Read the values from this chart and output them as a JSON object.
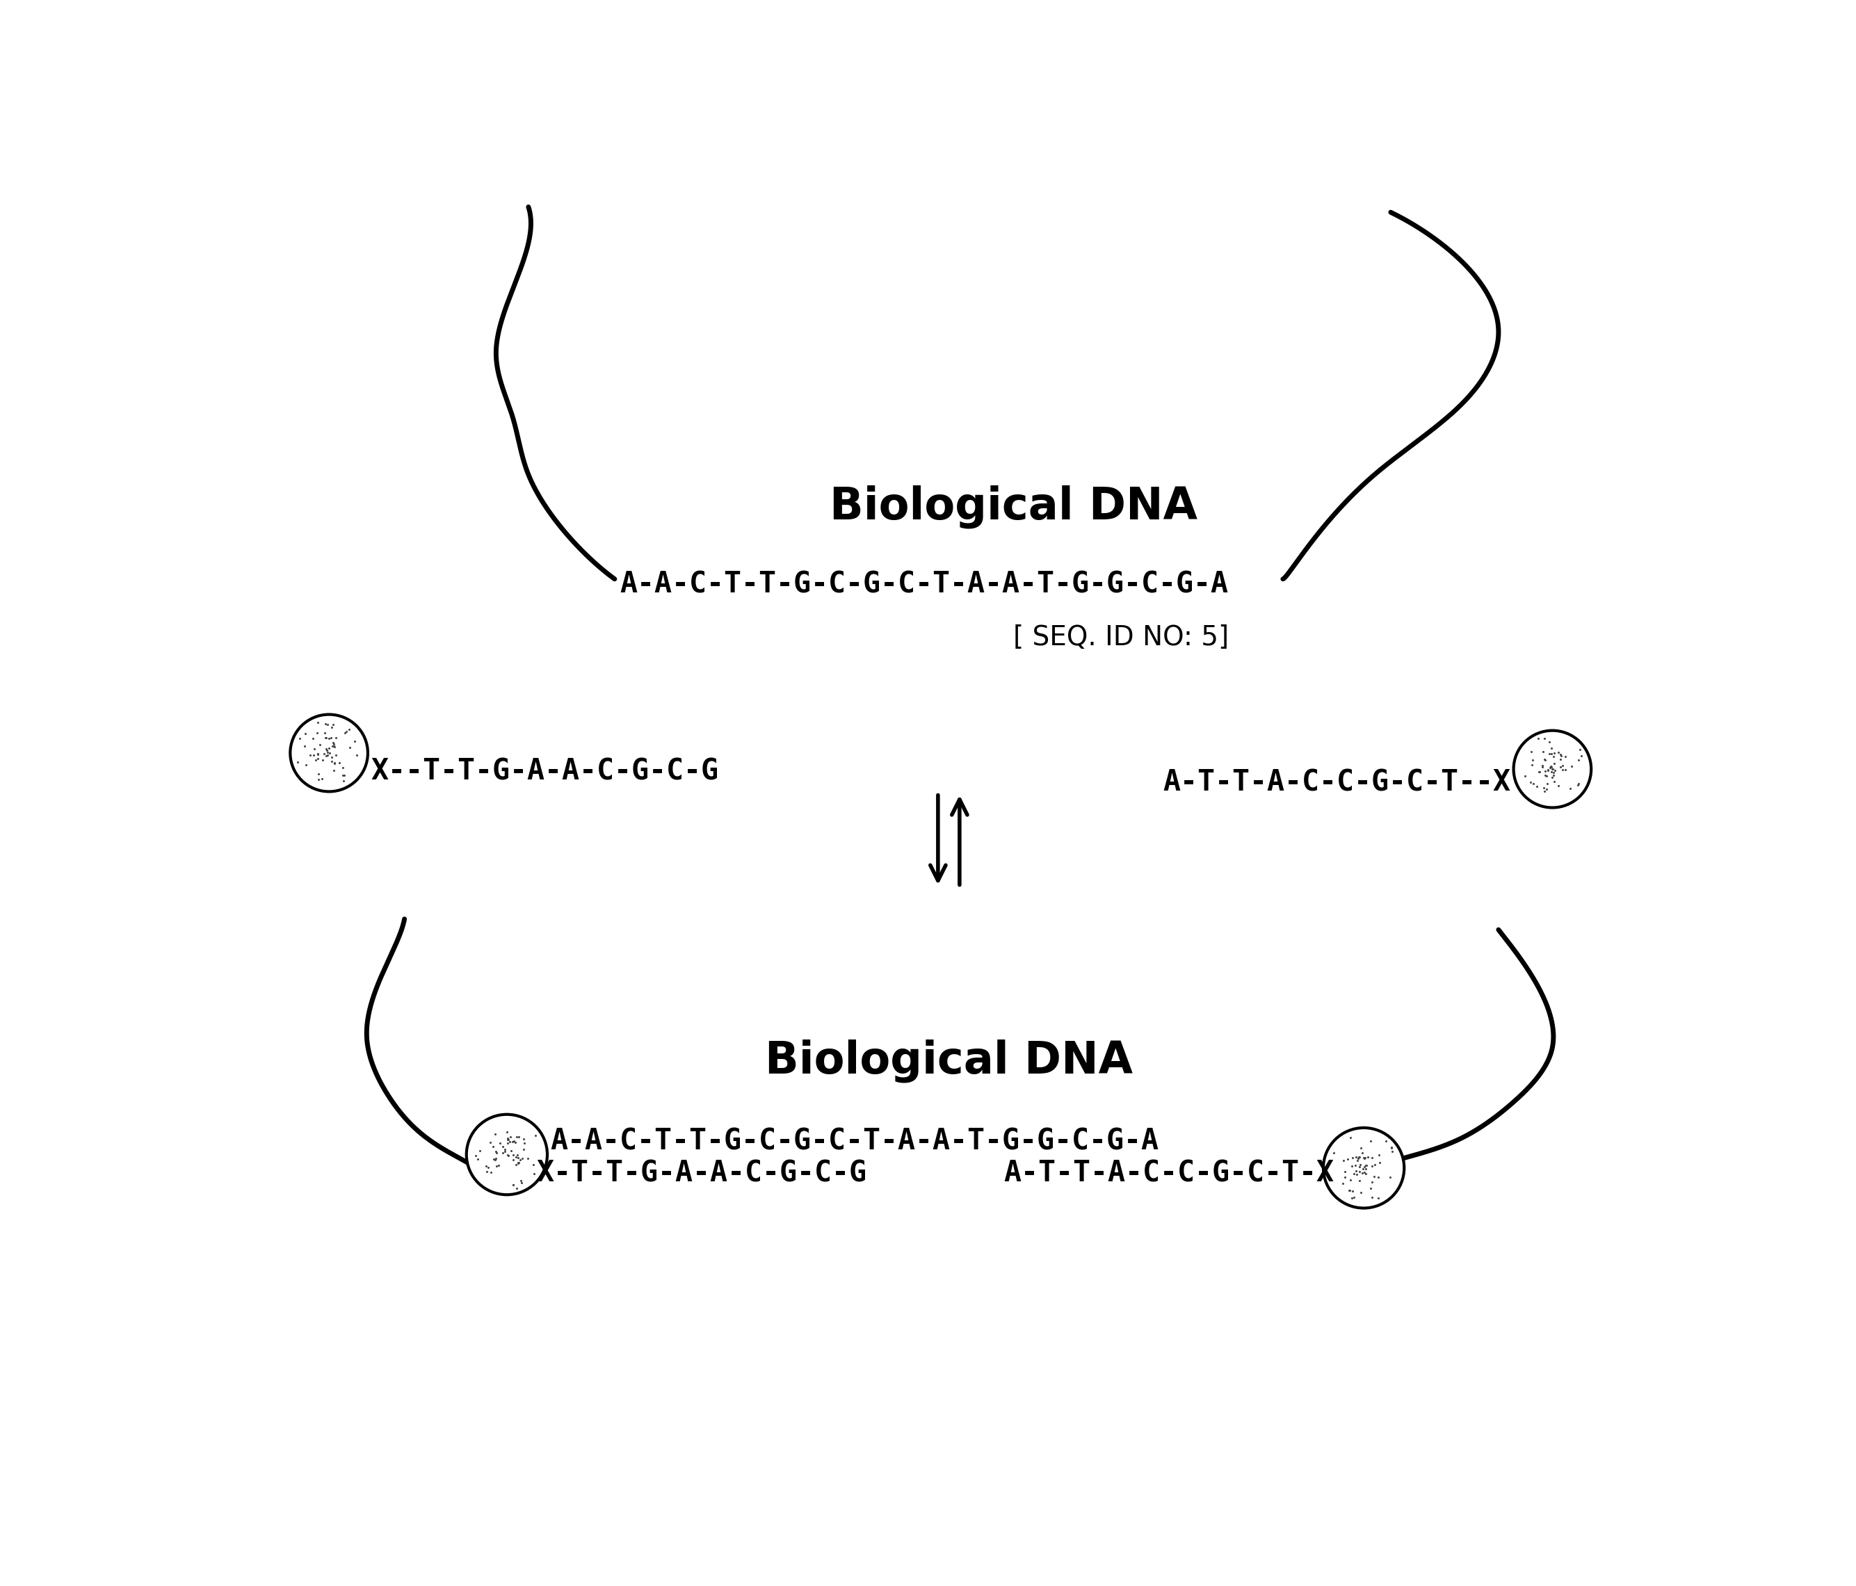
{
  "background_color": "#ffffff",
  "line_color": "#000000",
  "text_color": "#000000",
  "top_panel": {
    "bio_dna_label": "Biological DNA",
    "bio_dna_seq": "A-A-C-T-T-G-C-G-C-T-A-A-T-G-G-C-G-A",
    "seq_id": "[ SEQ. ID NO: 5]",
    "left_oligo": "X--T-T-G-A-A-C-G-C-G",
    "right_oligo": "A-T-T-A-C-C-G-C-T--X"
  },
  "bottom_panel": {
    "bio_dna_label": "Biological DNA",
    "bio_dna_seq": "A-A-C-T-T-G-C-G-C-T-A-A-T-G-G-C-G-A",
    "left_oligo": "X-T-T-G-A-A-C-G-C-G",
    "right_oligo": "A-T-T-A-C-C-G-C-T-X"
  }
}
